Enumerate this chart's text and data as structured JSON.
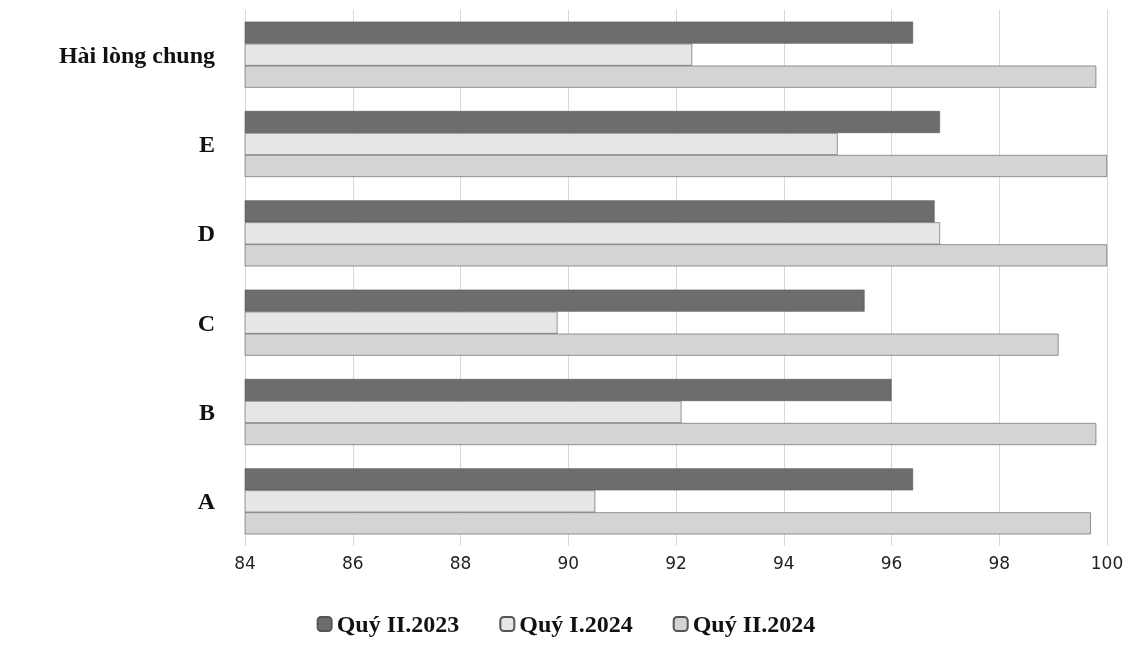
{
  "chart_data": {
    "type": "bar",
    "orientation": "horizontal",
    "categories": [
      "Hài lòng chung",
      "E",
      "D",
      "C",
      "B",
      "A"
    ],
    "series": [
      {
        "name": "Quý II.2023",
        "color": "#6d6d6d",
        "values": [
          96.4,
          96.9,
          96.8,
          95.5,
          96.0,
          96.4
        ]
      },
      {
        "name": "Quý I.2024",
        "color": "#e6e6e6",
        "values": [
          92.3,
          95.0,
          96.9,
          89.8,
          92.1,
          90.5
        ]
      },
      {
        "name": "Quý II.2024",
        "color": "#d4d4d4",
        "values": [
          99.8,
          100.0,
          100.0,
          99.1,
          99.8,
          99.7
        ]
      }
    ],
    "xlim": [
      84,
      100
    ],
    "xticks": [
      84,
      86,
      88,
      90,
      92,
      94,
      96,
      98,
      100
    ],
    "grid": "x",
    "legend": "bottom"
  }
}
